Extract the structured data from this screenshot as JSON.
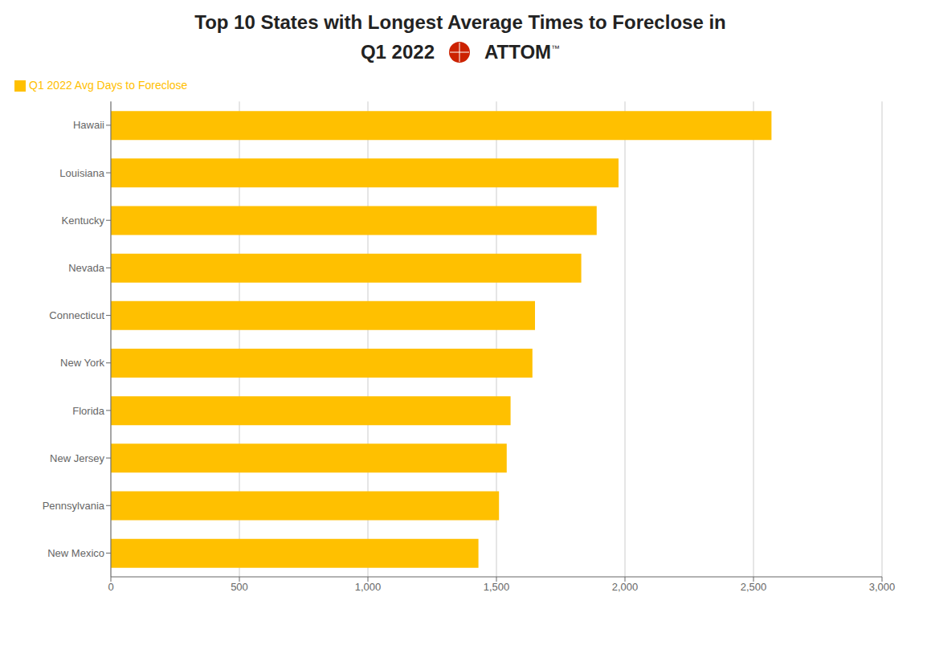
{
  "chart_data": {
    "type": "bar",
    "orientation": "horizontal",
    "title": "Top 10 States with Longest Average Times to Foreclose in",
    "subtitle": "Q1 2022",
    "annotations": [
      "ATTOM",
      "™"
    ],
    "categories": [
      "Hawaii",
      "Louisiana",
      "Kentucky",
      "Nevada",
      "Connecticut",
      "New York",
      "Florida",
      "New Jersey",
      "Pennsylvania",
      "New Mexico"
    ],
    "series": [
      {
        "name": "Q1 2022 Avg Days to Foreclose",
        "color": "#FFC000",
        "values": [
          2570,
          1975,
          1890,
          1830,
          1650,
          1640,
          1555,
          1540,
          1510,
          1430
        ]
      }
    ],
    "xlim": [
      0,
      3000
    ],
    "xticks": [
      0,
      500,
      {
        "value": 1000,
        "label": "1,000"
      },
      {
        "value": 1500,
        "label": "1,500"
      },
      {
        "value": 2000,
        "label": "2,000"
      },
      {
        "value": 2500,
        "label": "2,500"
      },
      {
        "value": 3000,
        "label": "3,000"
      }
    ],
    "grid": true,
    "legend": "upper left"
  }
}
